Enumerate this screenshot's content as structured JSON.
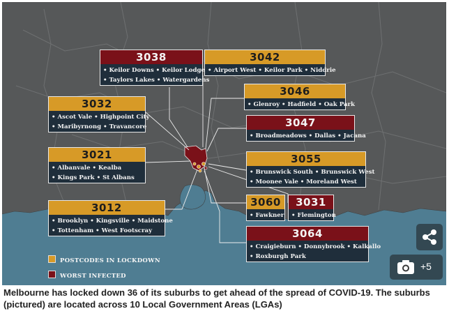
{
  "legend": {
    "lockdown_label": "POSTCODES IN LOCKDOWN",
    "worst_label": "WORST INFECTED",
    "lockdown_color": "#d79a27",
    "worst_color": "#7a1119"
  },
  "cards": [
    {
      "code": "3038",
      "status": "worst",
      "lines": [
        "• Keilor Downs  • Keilor Lodge",
        "• Taylors Lakes  • Watergardens"
      ]
    },
    {
      "code": "3042",
      "status": "lockdown",
      "lines": [
        "• Airport West  • Keilor Park  • Niddrie"
      ]
    },
    {
      "code": "3032",
      "status": "lockdown",
      "lines": [
        "• Ascot Vale  • Highpoint City",
        "• Maribyrnong  • Travancore"
      ]
    },
    {
      "code": "3046",
      "status": "lockdown",
      "lines": [
        "• Glenroy  • Hadfield  • Oak Park"
      ]
    },
    {
      "code": "3047",
      "status": "worst",
      "lines": [
        "• Broadmeadows  • Dallas  • Jacana"
      ]
    },
    {
      "code": "3021",
      "status": "lockdown",
      "lines": [
        "• Albanvale  • Kealba",
        "• Kings Park  • St Albans"
      ]
    },
    {
      "code": "3055",
      "status": "lockdown",
      "lines": [
        "• Brunswick South  • Brunswick West",
        "• Moonee Vale  • Moreland West"
      ]
    },
    {
      "code": "3012",
      "status": "lockdown",
      "lines": [
        "• Brooklyn  • Kingsville  • Maidstone",
        "• Tottenham  • West Footscray"
      ]
    },
    {
      "code": "3060",
      "status": "lockdown",
      "lines": [
        "• Fawkner"
      ]
    },
    {
      "code": "3031",
      "status": "worst",
      "lines": [
        "• Flemington"
      ]
    },
    {
      "code": "3064",
      "status": "worst",
      "lines": [
        "• Craigieburn  • Donnybrook  • Kalkallo",
        "• Roxburgh Park"
      ]
    }
  ],
  "photo_count": "+5",
  "caption": "Melbourne has locked down 36 of its suburbs to get ahead of the spread of COVID-19. The suburbs (pictured) are located across 10 Local Government Areas (LGAs)"
}
